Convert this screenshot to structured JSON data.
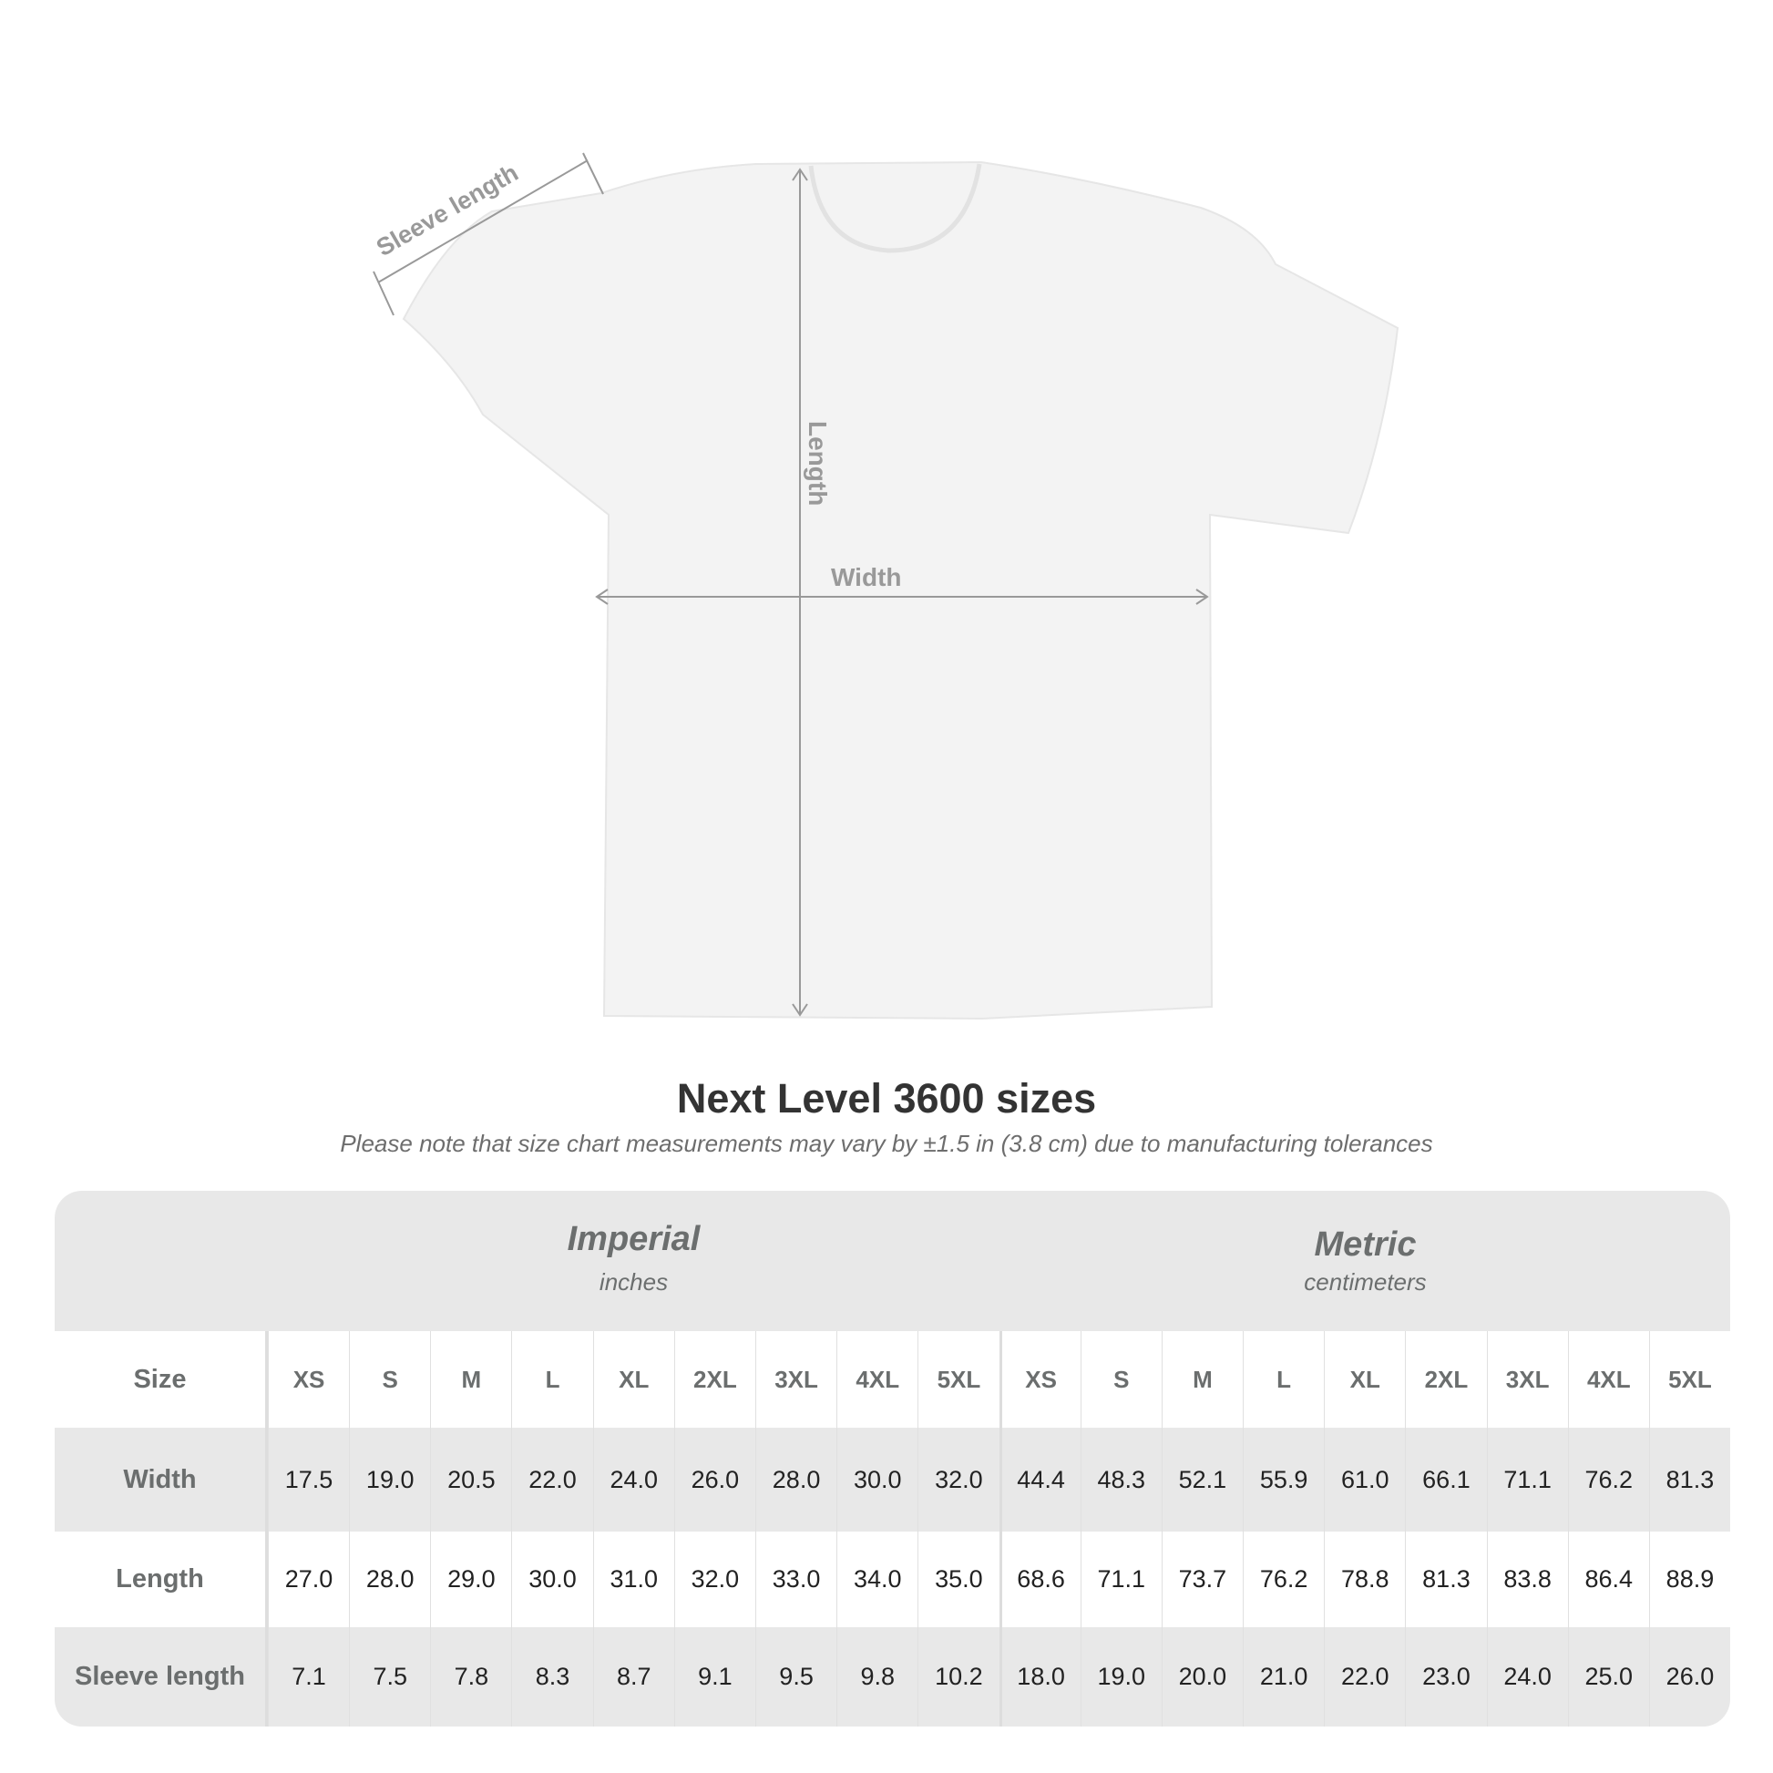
{
  "diagram": {
    "sleeve_label": "Sleeve length",
    "length_label": "Length",
    "width_label": "Width"
  },
  "title": "Next Level 3600 sizes",
  "subtitle": "Please note that size chart measurements may vary by ±1.5 in (3.8 cm) due to manufacturing tolerances",
  "table": {
    "imperial": {
      "name": "Imperial",
      "unit": "inches"
    },
    "metric": {
      "name": "Metric",
      "unit": "centimeters"
    },
    "size_label": "Size",
    "sizes": [
      "XS",
      "S",
      "M",
      "L",
      "XL",
      "2XL",
      "3XL",
      "4XL",
      "5XL"
    ],
    "rows": [
      {
        "label": "Width",
        "imperial": [
          "17.5",
          "19.0",
          "20.5",
          "22.0",
          "24.0",
          "26.0",
          "28.0",
          "30.0",
          "32.0"
        ],
        "metric": [
          "44.4",
          "48.3",
          "52.1",
          "55.9",
          "61.0",
          "66.1",
          "71.1",
          "76.2",
          "81.3"
        ]
      },
      {
        "label": "Length",
        "imperial": [
          "27.0",
          "28.0",
          "29.0",
          "30.0",
          "31.0",
          "32.0",
          "33.0",
          "34.0",
          "35.0"
        ],
        "metric": [
          "68.6",
          "71.1",
          "73.7",
          "76.2",
          "78.8",
          "81.3",
          "83.8",
          "86.4",
          "88.9"
        ]
      },
      {
        "label": "Sleeve length",
        "imperial": [
          "7.1",
          "7.5",
          "7.8",
          "8.3",
          "8.7",
          "9.1",
          "9.5",
          "9.8",
          "10.2"
        ],
        "metric": [
          "18.0",
          "19.0",
          "20.0",
          "21.0",
          "22.0",
          "23.0",
          "24.0",
          "25.0",
          "26.0"
        ]
      }
    ]
  }
}
